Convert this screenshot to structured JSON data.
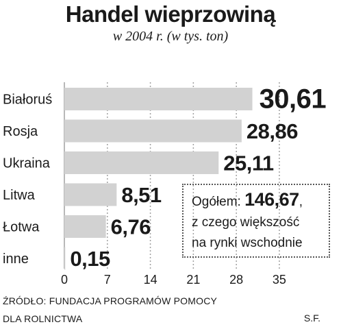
{
  "header": {
    "title": "Handel wieprzowiną",
    "subtitle": "w 2004 r. (w tys. ton)"
  },
  "summary": {
    "label": "Ogółem:",
    "total": "146,67",
    "total_suffix": ",",
    "line2": "z czego większość",
    "line3": "na rynki wschodnie"
  },
  "footer": {
    "source_line1": "ŹRÓDŁO: FUNDACJA PROGRAMÓW POMOCY",
    "source_line2": "DLA ROLNICTWA",
    "author": "S.F."
  },
  "colors": {
    "bar": "#d2d2d2",
    "grid": "#a0a0a0",
    "text": "#1a1a1a"
  },
  "chart_data": {
    "type": "bar",
    "orientation": "horizontal",
    "categories": [
      "Białoruś",
      "Rosja",
      "Ukraina",
      "Litwa",
      "Łotwa",
      "inne"
    ],
    "values": [
      30.61,
      28.86,
      25.11,
      8.51,
      6.76,
      0.15
    ],
    "value_labels": [
      "30,61",
      "28,86",
      "25,11",
      "8,51",
      "6,76",
      "0,15"
    ],
    "xlim": [
      0,
      35
    ],
    "xticks": [
      0,
      7,
      14,
      21,
      28,
      35
    ],
    "xtick_labels": [
      "0",
      "7",
      "14",
      "21",
      "28",
      "35"
    ],
    "grid": true,
    "grid_style": "dotted vertical",
    "unit": "tys. ton"
  }
}
